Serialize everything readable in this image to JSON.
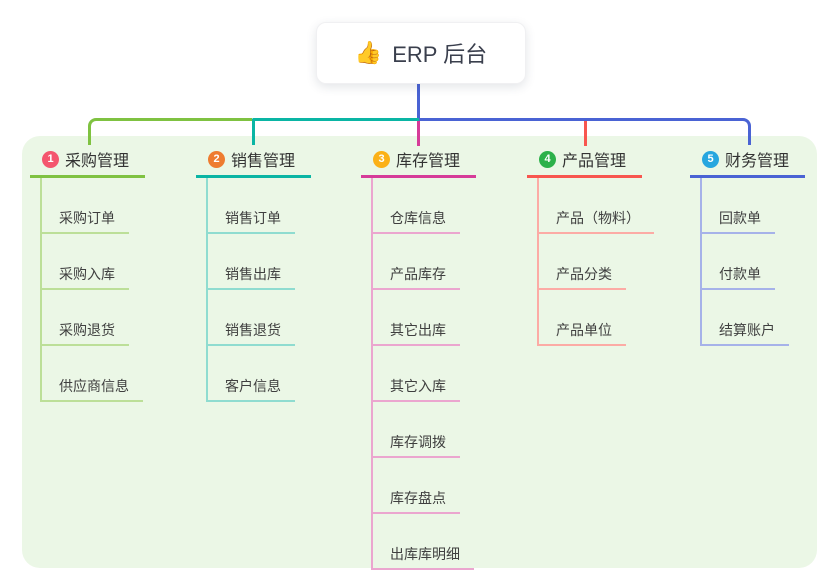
{
  "root": {
    "label": "ERP 后台",
    "emoji": "👍",
    "icon": "thumbs-up-icon"
  },
  "branches": [
    {
      "index": "1",
      "label": "采购管理",
      "badge_color": "#f4566e",
      "line_color": "#7fc241",
      "line_color_light": "#bcdf98",
      "children": [
        "采购订单",
        "采购入库",
        "采购退货",
        "供应商信息"
      ]
    },
    {
      "index": "2",
      "label": "销售管理",
      "badge_color": "#ee7c30",
      "line_color": "#0ab5a4",
      "line_color_light": "#8fdcd0",
      "children": [
        "销售订单",
        "销售出库",
        "销售退货",
        "客户信息"
      ]
    },
    {
      "index": "3",
      "label": "库存管理",
      "badge_color": "#fbb117",
      "line_color": "#d63c99",
      "line_color_light": "#eba6cf",
      "children": [
        "仓库信息",
        "产品库存",
        "其它出库",
        "其它入库",
        "库存调拨",
        "库存盘点",
        "出库库明细"
      ]
    },
    {
      "index": "4",
      "label": "产品管理",
      "badge_color": "#2cb14a",
      "line_color": "#f8564f",
      "line_color_light": "#fcaba5",
      "children": [
        "产品（物料）",
        "产品分类",
        "产品单位"
      ]
    },
    {
      "index": "5",
      "label": "财务管理",
      "badge_color": "#27a6df",
      "line_color": "#4a63d4",
      "line_color_light": "#a6b2e9",
      "children": [
        "回款单",
        "付款单",
        "结算账户"
      ]
    }
  ],
  "colors": {
    "panel_bg": "#ebf7e6",
    "root_line": "#4a63d4",
    "text": "#333333"
  }
}
